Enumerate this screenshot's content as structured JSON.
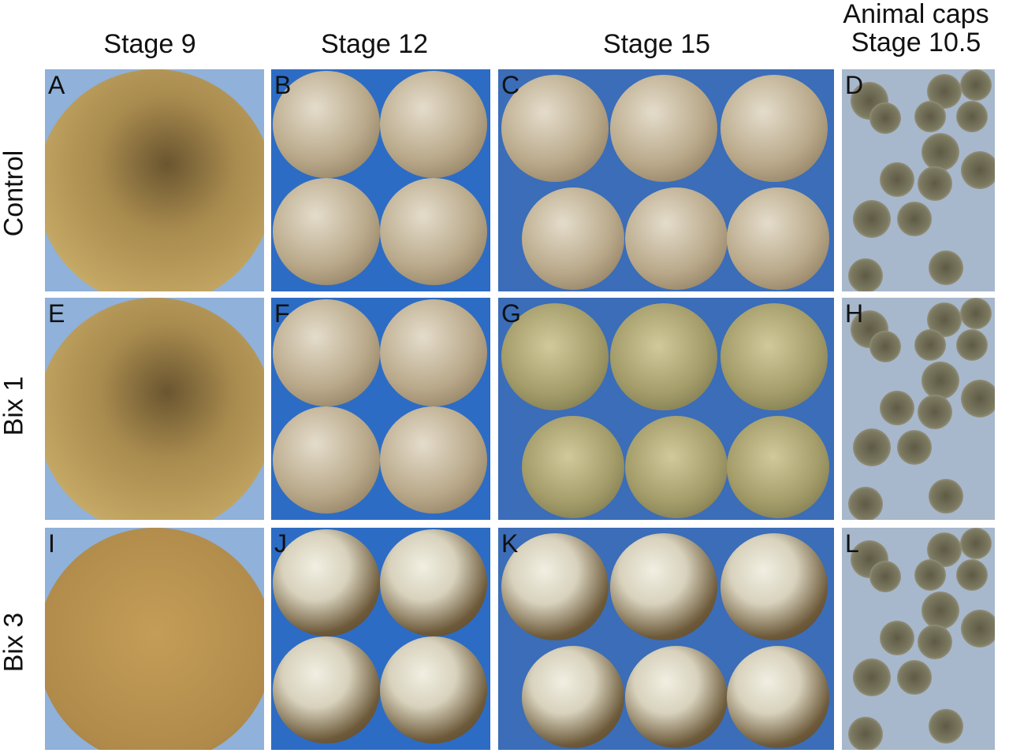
{
  "columns": [
    "Stage 9",
    "Stage 12",
    "Stage 15",
    "Animal caps\nStage 10.5"
  ],
  "column_lines": {
    "animal_caps_1": "Animal caps",
    "animal_caps_2": "Stage 10.5"
  },
  "rows": [
    "Control",
    "Bix 1",
    "Bix 3"
  ],
  "panels": [
    "A",
    "B",
    "C",
    "D",
    "E",
    "F",
    "G",
    "H",
    "I",
    "J",
    "K",
    "L"
  ],
  "colors": {
    "stage9_bg": "#8fb1da",
    "stage12_bg": "#2d6cc4",
    "stage15_bg": "#3b6db8",
    "caps_bg": "#a7b7cc",
    "embryo": "#b59a5e"
  }
}
